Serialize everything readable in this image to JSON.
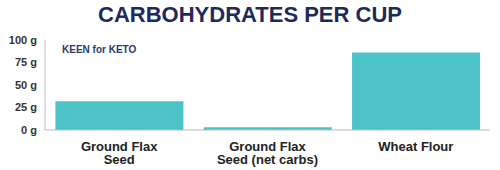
{
  "chart_data": {
    "type": "bar",
    "title": "CARBOHYDRATES PER CUP",
    "annotations": [
      "KEEN for KETO"
    ],
    "categories": [
      "Ground Flax Seed",
      "Ground Flax Seed (net carbs)",
      "Wheat Flour"
    ],
    "values": [
      32,
      3,
      86
    ],
    "color": "#4dc3c8",
    "ylim": [
      0,
      100
    ],
    "yticks": [
      {
        "value": 0,
        "label": "0 g"
      },
      {
        "value": 25,
        "label": "25 g"
      },
      {
        "value": 50,
        "label": "50 g"
      },
      {
        "value": 75,
        "label": "75 g"
      },
      {
        "value": 100,
        "label": "100 g"
      }
    ],
    "grid": false
  }
}
